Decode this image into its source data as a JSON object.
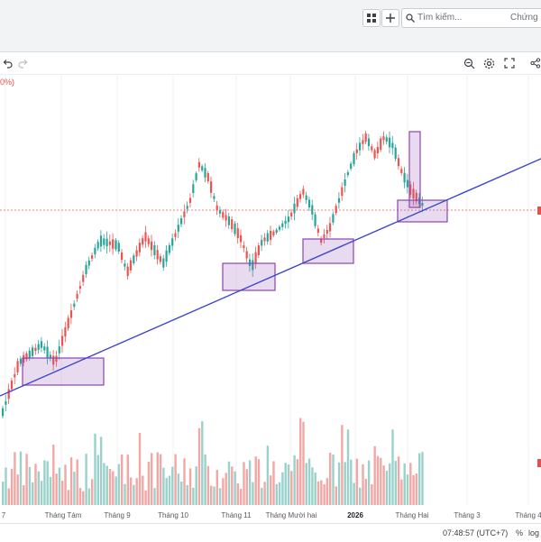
{
  "topbar": {
    "grid_icon": "grid-icon",
    "add_icon": "plus-icon",
    "search_placeholder": "Tìm kiếm...",
    "market_select": "Chứng khoán"
  },
  "toolbar": {
    "undo_icon": "undo-icon",
    "redo_icon": "redo-icon",
    "zoom_icon": "zoom-icon",
    "settings_icon": "gear-icon",
    "fullscreen_icon": "fullscreen-icon",
    "share_icon": "share-icon"
  },
  "chart": {
    "percent_label": "0%)",
    "x_ticks": [
      "7",
      "Tháng Tám",
      "Tháng 9",
      "Tháng 10",
      "Tháng 11",
      "Tháng Mười hai",
      "2026",
      "Tháng Hai",
      "Tháng 3",
      "Tháng 4"
    ],
    "bold_tick": "2026",
    "colors": {
      "up": "#26a69a",
      "down": "#ef5350",
      "trendline": "#3f48cc",
      "highlight": "#9b59b6"
    }
  },
  "status": {
    "clock": "07:48:57 (UTC+7)",
    "percent_button": "%",
    "log_button": "log"
  }
}
